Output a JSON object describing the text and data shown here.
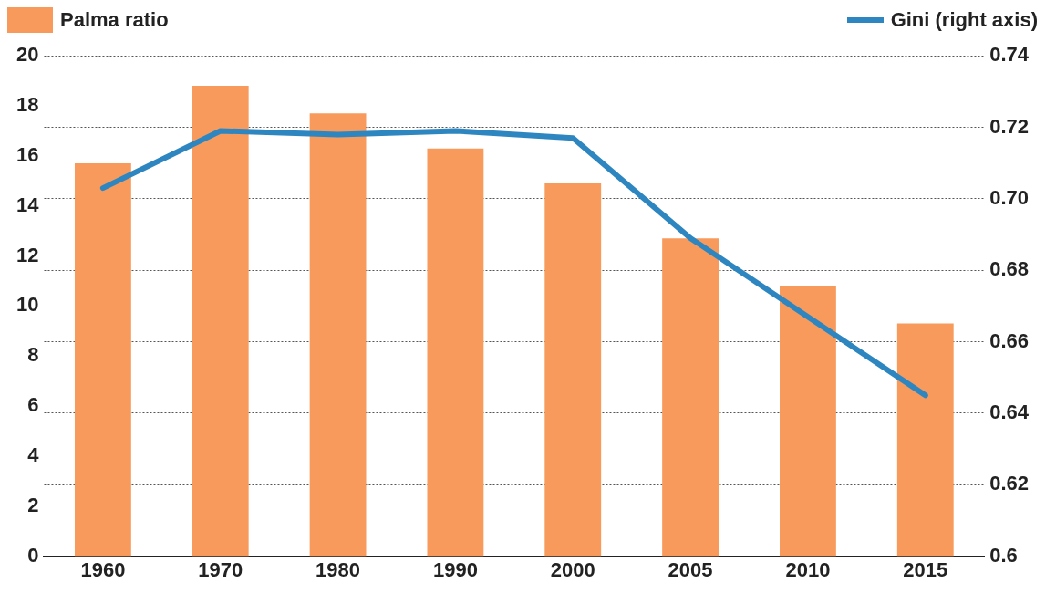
{
  "chart_data": {
    "type": "bar",
    "categories": [
      "1960",
      "1970",
      "1980",
      "1990",
      "2000",
      "2005",
      "2010",
      "2015"
    ],
    "series": [
      {
        "name": "Palma ratio",
        "color": "#f79a5c",
        "values": [
          15.7,
          18.8,
          17.7,
          16.3,
          14.9,
          12.7,
          10.8,
          9.3
        ]
      },
      {
        "name": "Gini (right axis)",
        "type": "line",
        "axis": "y2",
        "color": "#2e86c1",
        "values": [
          0.703,
          0.719,
          0.718,
          0.719,
          0.717,
          0.689,
          0.667,
          0.645
        ]
      }
    ],
    "ylim": [
      0,
      20
    ],
    "yticks": [
      0,
      2,
      4,
      6,
      8,
      10,
      12,
      14,
      16,
      18,
      20
    ],
    "y2lim": [
      0.6,
      0.74
    ],
    "y2ticks": [
      0.6,
      0.62,
      0.64,
      0.66,
      0.68,
      {
        "value": 0.7,
        "label": "0.70"
      },
      0.72,
      0.74
    ],
    "grid": "y2",
    "legend": "top",
    "marker": "none",
    "line_style": "solid"
  }
}
